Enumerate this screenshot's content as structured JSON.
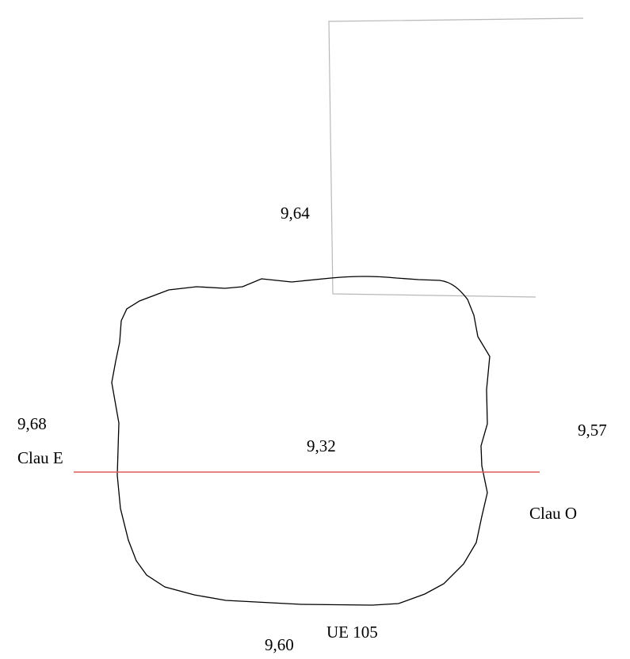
{
  "labels": {
    "elev_top": "9,64",
    "elev_west": "9,68",
    "clau_e": "Clau E",
    "elev_center": "9,32",
    "elev_east": "9,57",
    "clau_o": "Clau O",
    "unit": "UE 105",
    "elev_bottom": "9,60"
  },
  "colors": {
    "outline": "#000000",
    "section_line": "#e05a5a",
    "trench_edge": "#b8b8b8",
    "text": "#000000"
  }
}
